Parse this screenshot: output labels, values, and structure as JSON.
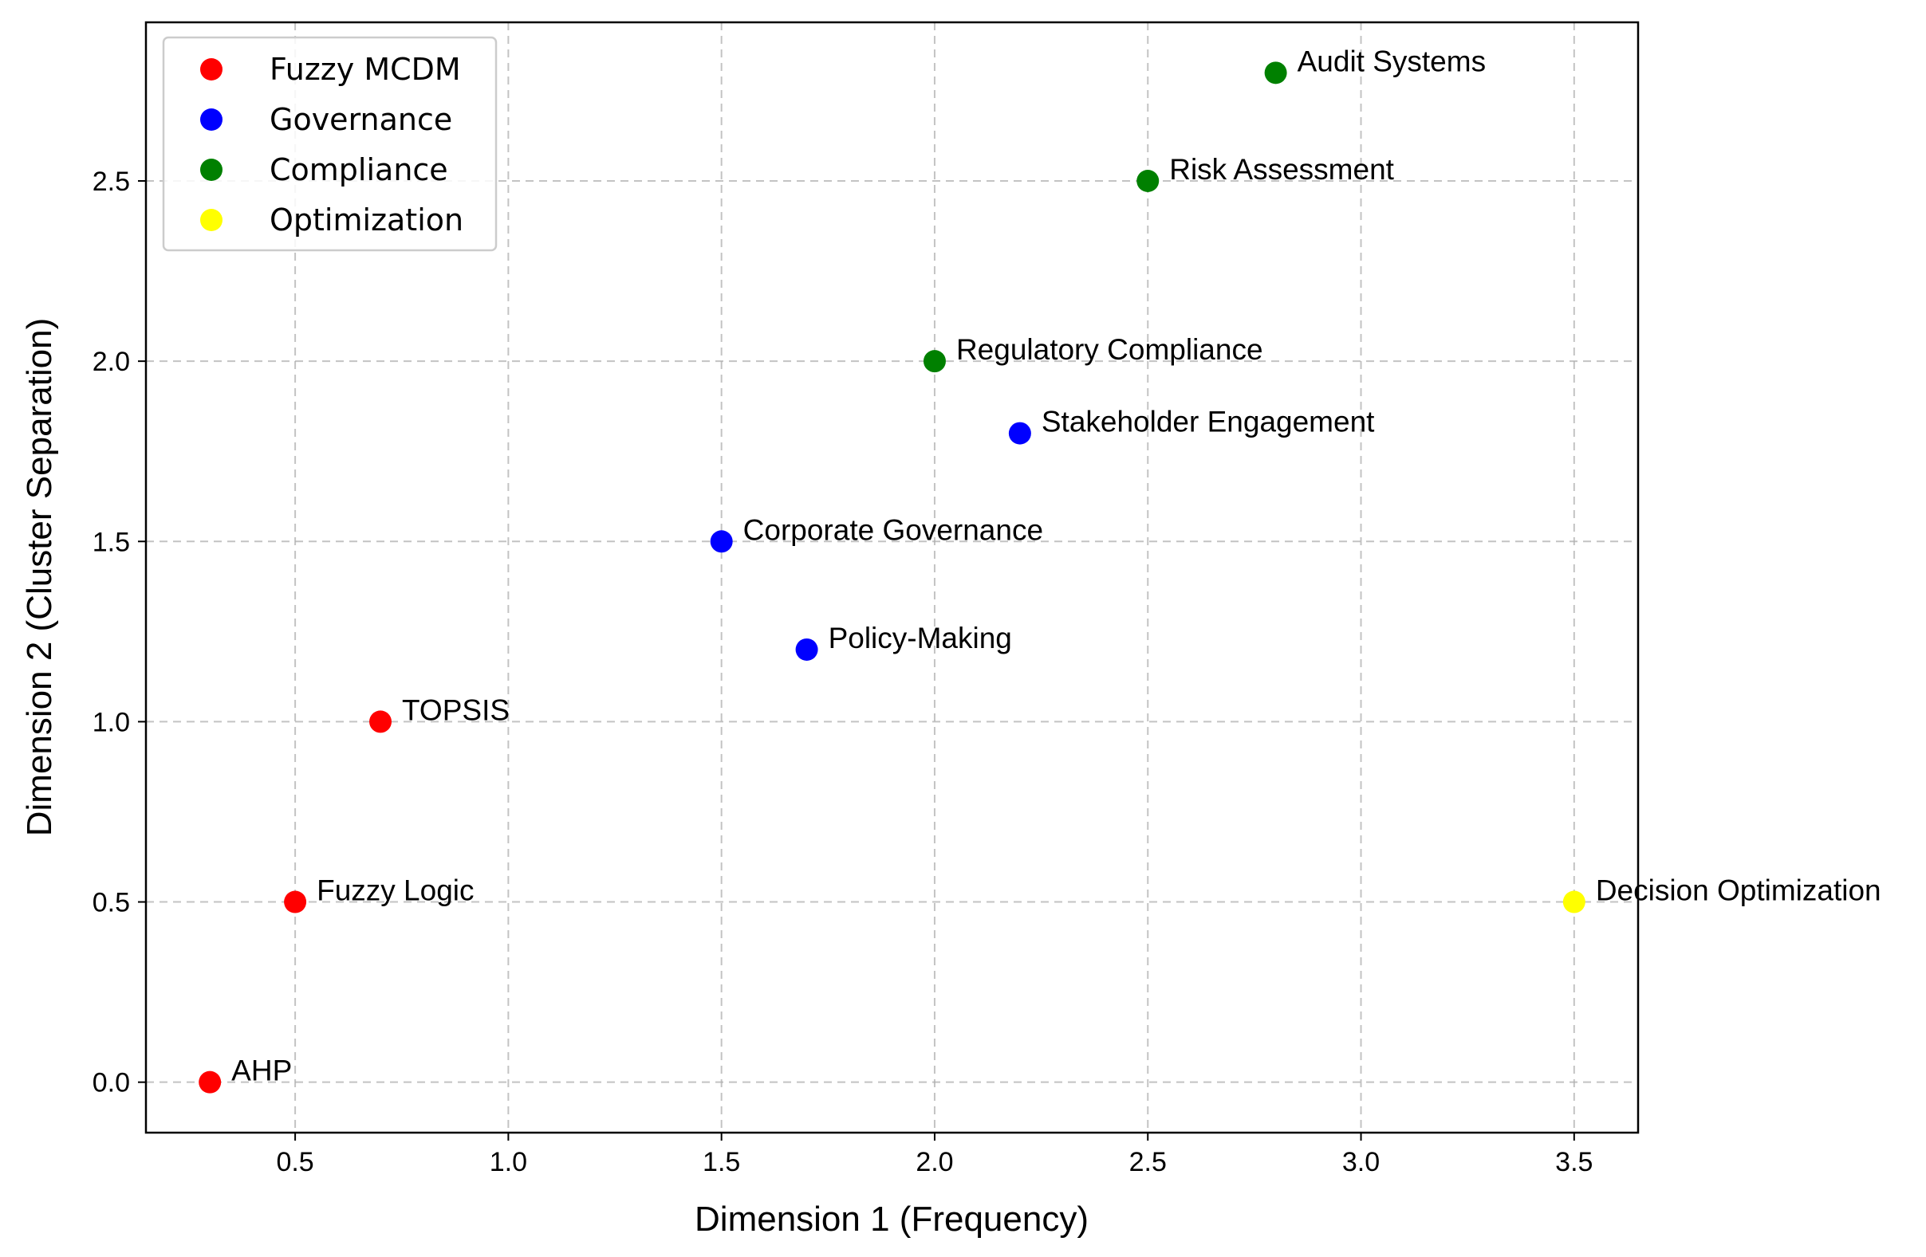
{
  "chart_data": {
    "type": "scatter",
    "xlabel": "Dimension 1 (Frequency)",
    "ylabel": "Dimension 2 (Cluster Separation)",
    "xlim": [
      0.15,
      3.65
    ],
    "ylim": [
      -0.14,
      2.94
    ],
    "xticks": [
      {
        "value": 0.5,
        "label": "0.5"
      },
      {
        "value": 1.0,
        "label": "1.0"
      },
      {
        "value": 1.5,
        "label": "1.5"
      },
      {
        "value": 2.0,
        "label": "2.0"
      },
      {
        "value": 2.5,
        "label": "2.5"
      },
      {
        "value": 3.0,
        "label": "3.0"
      },
      {
        "value": 3.5,
        "label": "3.5"
      }
    ],
    "yticks": [
      {
        "value": 0.0,
        "label": "0.0"
      },
      {
        "value": 0.5,
        "label": "0.5"
      },
      {
        "value": 1.0,
        "label": "1.0"
      },
      {
        "value": 1.5,
        "label": "1.5"
      },
      {
        "value": 2.0,
        "label": "2.0"
      },
      {
        "value": 2.5,
        "label": "2.5"
      }
    ],
    "grid": true,
    "legend_position": "top-left",
    "series": [
      {
        "name": "Fuzzy MCDM",
        "color": "#ff0000",
        "points": [
          {
            "label": "AHP",
            "x": 0.3,
            "y": 0.0
          },
          {
            "label": "Fuzzy Logic",
            "x": 0.5,
            "y": 0.5
          },
          {
            "label": "TOPSIS",
            "x": 0.7,
            "y": 1.0
          }
        ]
      },
      {
        "name": "Governance",
        "color": "#0000ff",
        "points": [
          {
            "label": "Corporate Governance",
            "x": 1.5,
            "y": 1.5
          },
          {
            "label": "Policy-Making",
            "x": 1.7,
            "y": 1.2
          },
          {
            "label": "Stakeholder Engagement",
            "x": 2.2,
            "y": 1.8
          }
        ]
      },
      {
        "name": "Compliance",
        "color": "#008000",
        "points": [
          {
            "label": "Regulatory Compliance",
            "x": 2.0,
            "y": 2.0
          },
          {
            "label": "Risk Assessment",
            "x": 2.5,
            "y": 2.5
          },
          {
            "label": "Audit Systems",
            "x": 2.8,
            "y": 2.8
          }
        ]
      },
      {
        "name": "Optimization",
        "color": "#ffff00",
        "points": [
          {
            "label": "Decision Optimization",
            "x": 3.5,
            "y": 0.5
          }
        ]
      }
    ]
  }
}
